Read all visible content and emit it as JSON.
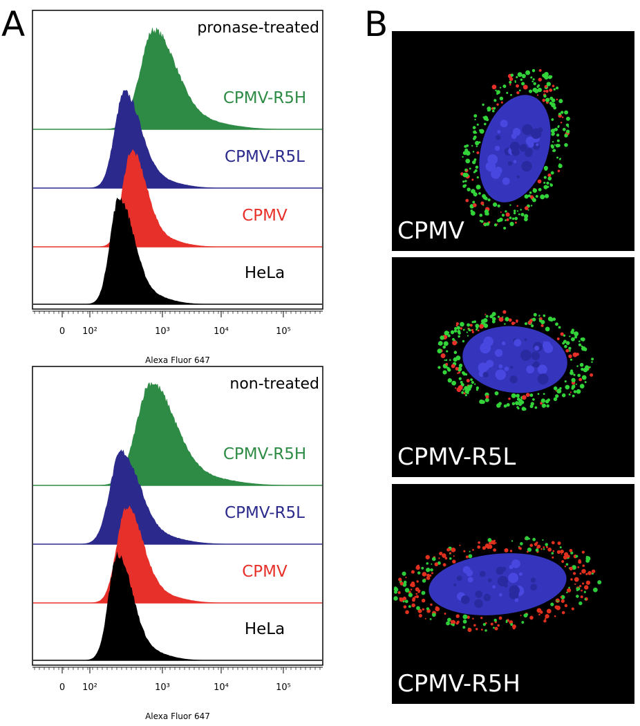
{
  "panel_a": {
    "label": "A",
    "plots": [
      {
        "condition": "pronase-treated",
        "rows": [
          {
            "name": "CPMV-R5H",
            "color": "#2e8b45"
          },
          {
            "name": "CPMV-R5L",
            "color": "#2b2a8c"
          },
          {
            "name": "CPMV",
            "color": "#e8302a"
          },
          {
            "name": "HeLa",
            "color": "#000000"
          }
        ],
        "x_ticks": [
          "0",
          "10²",
          "10³",
          "10⁴",
          "10⁵"
        ],
        "x_label": "Alexa Fluor 647"
      },
      {
        "condition": "non-treated",
        "rows": [
          {
            "name": "CPMV-R5H",
            "color": "#2e8b45"
          },
          {
            "name": "CPMV-R5L",
            "color": "#2b2a8c"
          },
          {
            "name": "CPMV",
            "color": "#e8302a"
          },
          {
            "name": "HeLa",
            "color": "#000000"
          }
        ],
        "x_ticks": [
          "0",
          "10²",
          "10³",
          "10⁴",
          "10⁵"
        ],
        "x_label": "Alexa Fluor 647"
      }
    ]
  },
  "panel_b": {
    "label": "B",
    "images": [
      "CPMV",
      "CPMV-R5L",
      "CPMV-R5H"
    ]
  }
}
